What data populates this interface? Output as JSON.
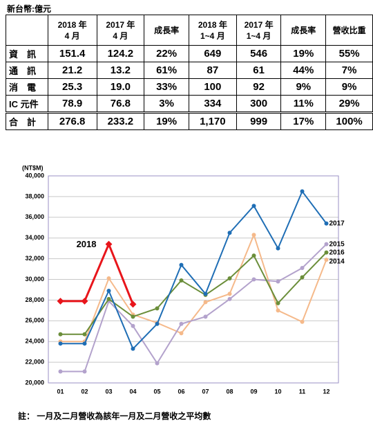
{
  "unit_label": "新台幣:億元",
  "table": {
    "header": [
      [
        "2018 年",
        "4 月"
      ],
      [
        "2017 年",
        "4 月"
      ],
      [
        "成長率"
      ],
      [
        "2018 年",
        "1~4 月"
      ],
      [
        "2017 年",
        "1~4 月"
      ],
      [
        "成長率"
      ],
      [
        "營收比重"
      ]
    ],
    "rows": [
      [
        "資　訊",
        "151.4",
        "124.2",
        "22%",
        "649",
        "546",
        "19%",
        "55%"
      ],
      [
        "通　訊",
        "21.2",
        "13.2",
        "61%",
        "87",
        "61",
        "44%",
        "7%"
      ],
      [
        "消　電",
        "25.3",
        "19.0",
        "33%",
        "100",
        "92",
        "9%",
        "9%"
      ],
      [
        "IC 元件",
        "78.9",
        "76.8",
        "3%",
        "334",
        "300",
        "11%",
        "29%"
      ],
      [
        "合　計",
        "276.8",
        "233.2",
        "19%",
        "1,170",
        "999",
        "17%",
        "100%"
      ]
    ]
  },
  "chart_data": {
    "type": "line",
    "y_axis_label": "(NT$M)",
    "categories": [
      "01",
      "02",
      "03",
      "04",
      "05",
      "06",
      "07",
      "08",
      "09",
      "10",
      "11",
      "12"
    ],
    "ylim": [
      20000,
      40000
    ],
    "yticks": [
      {
        "value": 20000,
        "label": "20,000"
      },
      {
        "value": 22000,
        "label": "22,000"
      },
      {
        "value": 24000,
        "label": "24,000"
      },
      {
        "value": 26000,
        "label": "26,000"
      },
      {
        "value": 28000,
        "label": "28,000"
      },
      {
        "value": 30000,
        "label": "30,000"
      },
      {
        "value": 32000,
        "label": "32,000"
      },
      {
        "value": 34000,
        "label": "34,000"
      },
      {
        "value": 36000,
        "label": "36,000"
      },
      {
        "value": 38000,
        "label": "38,000"
      },
      {
        "value": 40000,
        "label": "40,000"
      }
    ],
    "grid": true,
    "series": [
      {
        "name": "2018",
        "color": "#e8151b",
        "values": [
          27900,
          27900,
          33400,
          27600,
          null,
          null,
          null,
          null,
          null,
          null,
          null,
          null
        ]
      },
      {
        "name": "2017",
        "color": "#1f6eb5",
        "values": [
          23800,
          23800,
          28900,
          23300,
          25700,
          31400,
          28600,
          34500,
          37100,
          33000,
          38500,
          35400
        ]
      },
      {
        "name": "2016",
        "color": "#6b8e3a",
        "values": [
          24700,
          24700,
          28100,
          26400,
          27200,
          29900,
          28500,
          30100,
          32300,
          27700,
          30200,
          32600
        ]
      },
      {
        "name": "2015",
        "color": "#b3a2cc",
        "values": [
          21100,
          21100,
          27900,
          25500,
          21900,
          25700,
          26400,
          28100,
          30000,
          29800,
          31100,
          33400
        ]
      },
      {
        "name": "2014",
        "color": "#f5b98a",
        "values": [
          24000,
          24000,
          30100,
          26600,
          25800,
          24800,
          27800,
          28600,
          34300,
          27000,
          25900,
          31900
        ]
      }
    ]
  },
  "note": "註：  一月及二月營收為該年一月及二月營收之平均數"
}
